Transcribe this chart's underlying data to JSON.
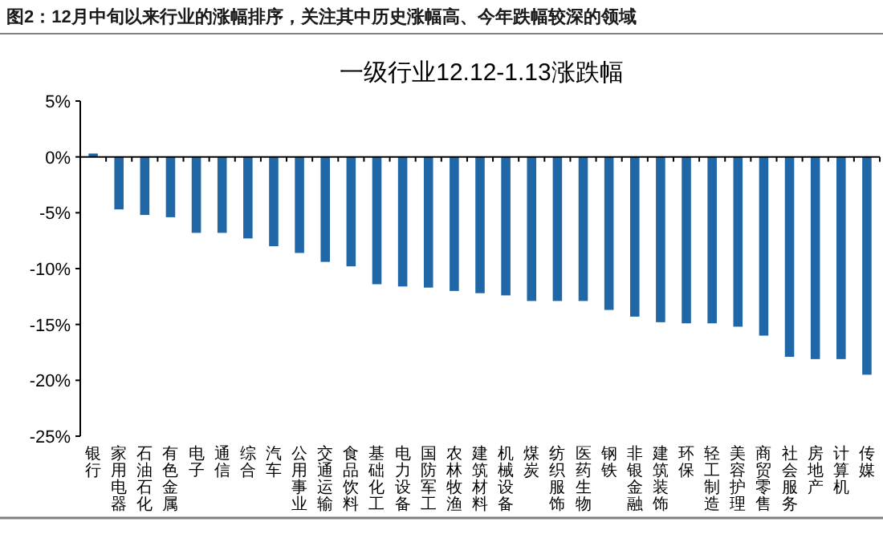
{
  "chart_data": {
    "type": "bar",
    "title": "图2：12月中旬以来行业的涨幅排序，关注其中历史涨幅高、今年跌幅较深的领域",
    "subtitle": "一级行业12.12-1.13涨跌幅",
    "categories": [
      "银行",
      "家用电器",
      "石油石化",
      "有色金属",
      "电子",
      "通信",
      "综合",
      "汽车",
      "公用事业",
      "交通运输",
      "食品饮料",
      "基础化工",
      "电力设备",
      "国防军工",
      "农林牧渔",
      "建筑材料",
      "机械设备",
      "煤炭",
      "纺织服饰",
      "医药生物",
      "钢铁",
      "非银金融",
      "建筑装饰",
      "环保",
      "轻工制造",
      "美容护理",
      "商贸零售",
      "社会服务",
      "房地产",
      "计算机",
      "传媒"
    ],
    "values": [
      0.3,
      -4.7,
      -5.2,
      -5.4,
      -6.8,
      -6.8,
      -7.3,
      -8.0,
      -8.6,
      -9.4,
      -9.8,
      -11.4,
      -11.6,
      -11.7,
      -12.0,
      -12.2,
      -12.4,
      -12.9,
      -12.9,
      -12.9,
      -13.7,
      -14.3,
      -14.8,
      -14.9,
      -14.9,
      -15.2,
      -16.0,
      -17.9,
      -18.1,
      -18.1,
      -19.5
    ],
    "color": "#1f67a6",
    "ylim": [
      -25,
      5
    ],
    "yticks": [
      {
        "value": 5,
        "label": "5%"
      },
      {
        "value": 0,
        "label": "0%"
      },
      {
        "value": -5,
        "label": "-5%"
      },
      {
        "value": -10,
        "label": "-10%"
      },
      {
        "value": -15,
        "label": "-15%"
      },
      {
        "value": -20,
        "label": "-20%"
      },
      {
        "value": -25,
        "label": "-25%"
      }
    ]
  }
}
